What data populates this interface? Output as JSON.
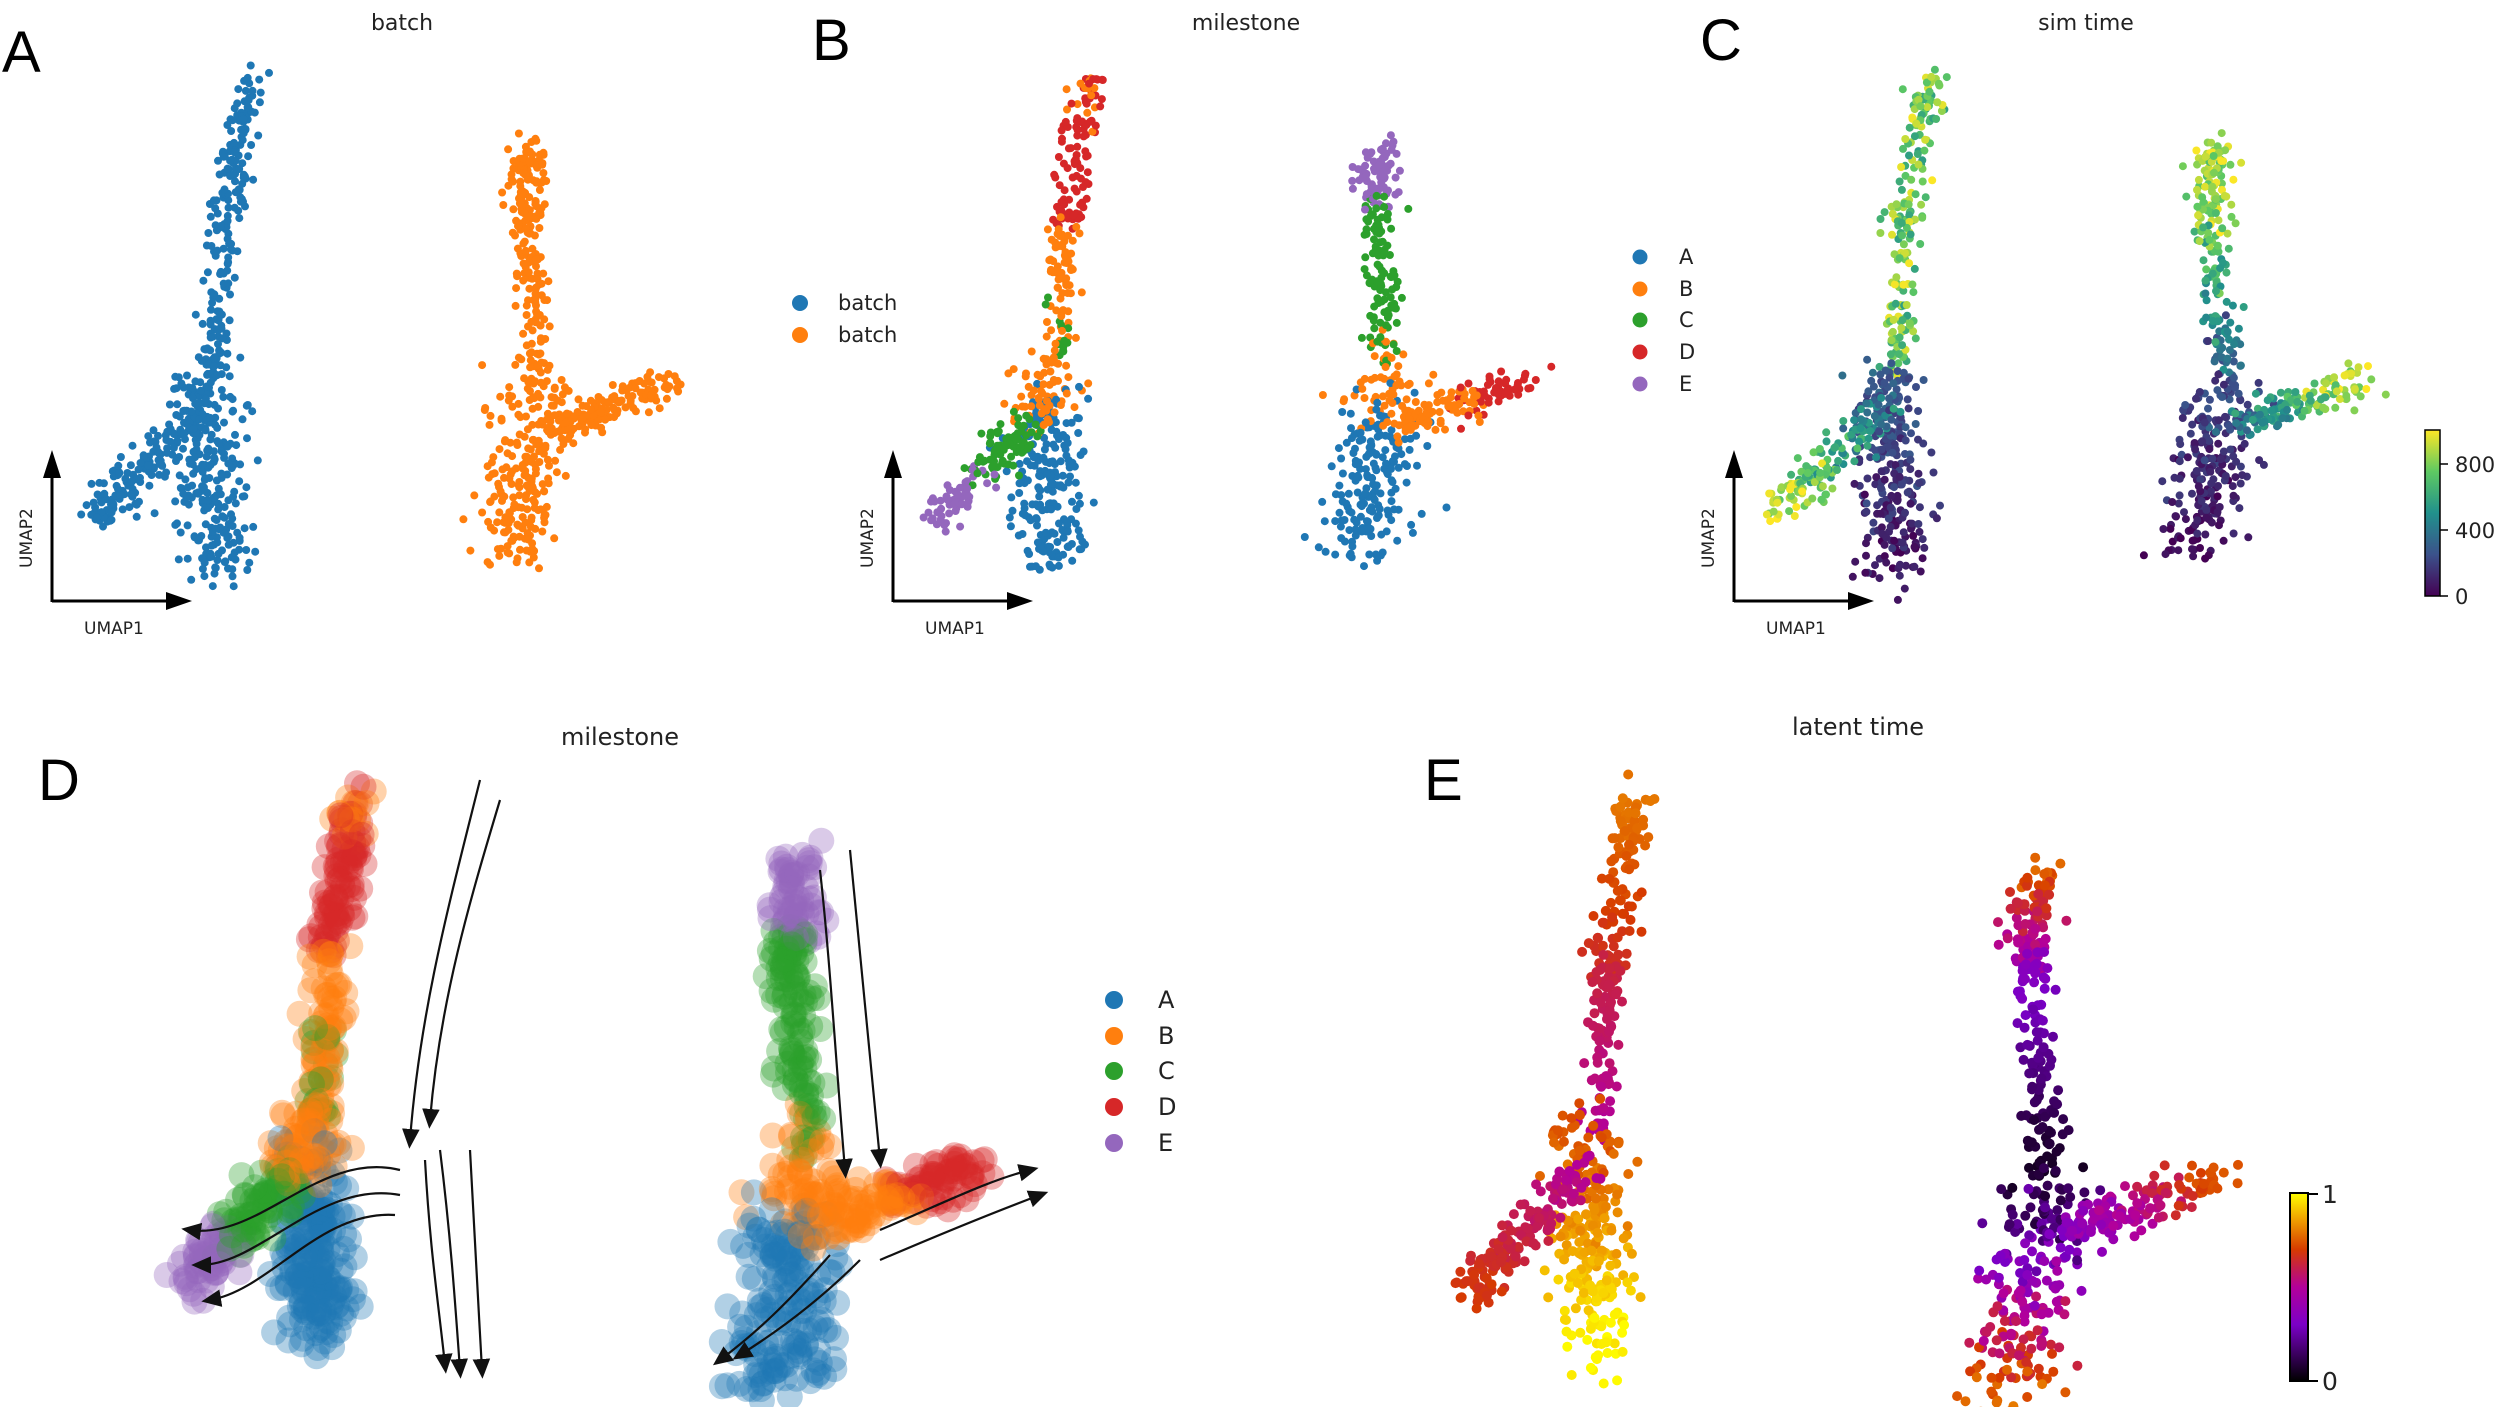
{
  "chart_data": [
    {
      "panel": "A",
      "type": "scatter",
      "title": "batch",
      "xlabel": "UMAP1",
      "ylabel": "UMAP2",
      "legend": [
        "batch",
        "batch"
      ],
      "colors": [
        "#1f77b4",
        "#ff7f0e"
      ]
    },
    {
      "panel": "B",
      "type": "scatter",
      "title": "milestone",
      "xlabel": "UMAP1",
      "ylabel": "UMAP2",
      "legend": [
        "A",
        "B",
        "C",
        "D",
        "E"
      ],
      "colors": [
        "#1f77b4",
        "#ff7f0e",
        "#2ca02c",
        "#d62728",
        "#9467bd"
      ]
    },
    {
      "panel": "C",
      "type": "scatter",
      "title": "sim time",
      "xlabel": "UMAP1",
      "ylabel": "UMAP2",
      "colorbar": {
        "ticks": [
          "0",
          "400",
          "800"
        ],
        "range": [
          0,
          1000
        ],
        "colormap": "viridis"
      }
    },
    {
      "panel": "D",
      "type": "scatter",
      "title": "milestone",
      "legend": [
        "A",
        "B",
        "C",
        "D",
        "E"
      ],
      "colors": [
        "#1f77b4",
        "#ff7f0e",
        "#2ca02c",
        "#d62728",
        "#9467bd"
      ],
      "overlay": "velocity streamlines"
    },
    {
      "panel": "E",
      "type": "scatter",
      "title": "latent time",
      "colorbar": {
        "ticks": [
          "0",
          "1"
        ],
        "range": [
          0,
          1
        ],
        "colormap": "gnuplot"
      }
    }
  ]
}
